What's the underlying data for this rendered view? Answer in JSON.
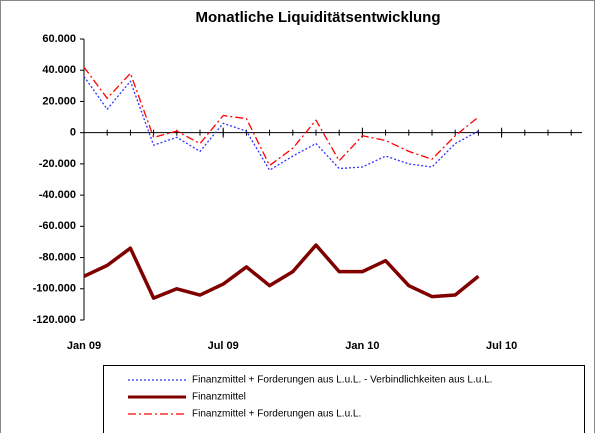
{
  "chart_data": {
    "type": "line",
    "title": "Monatliche Liquiditätsentwicklung",
    "categories": [
      "Jan 09",
      null,
      null,
      null,
      null,
      null,
      "Jul 09",
      null,
      null,
      null,
      null,
      null,
      "Jan 10",
      null,
      null,
      null,
      null,
      null,
      "Jul 10"
    ],
    "series": [
      {
        "name": "Finanzmittel + Forderungen aus L.u.L. - Verbindlichkeiten aus L.u.L.",
        "color": "#3333ff",
        "dash": "2,2",
        "width": 1.3,
        "values": [
          36000,
          15000,
          33000,
          -8000,
          -3000,
          -12000,
          6000,
          1000,
          -24000,
          -15000,
          -7000,
          -23000,
          -22000,
          -15000,
          -20000,
          -22000,
          -7000,
          1000,
          null
        ]
      },
      {
        "name": "Finanzmittel",
        "color": "#800000",
        "dash": "none",
        "width": 3.5,
        "values": [
          -92000,
          -85000,
          -74000,
          -106000,
          -100000,
          -104000,
          -97000,
          -86000,
          -98000,
          -89000,
          -72000,
          -89000,
          -89000,
          -82000,
          -98000,
          -105000,
          -104000,
          -92000,
          null
        ]
      },
      {
        "name": "Finanzmittel + Forderungen aus L.u.L.",
        "color": "#ff0000",
        "dash": "8,3,2,3",
        "width": 1.3,
        "values": [
          42000,
          22000,
          38000,
          -3000,
          1000,
          -7000,
          11000,
          9000,
          -21000,
          -10000,
          8000,
          -18000,
          -2000,
          -5000,
          -12000,
          -17000,
          -2000,
          10000,
          null
        ]
      }
    ],
    "ylim": [
      -120000,
      60000
    ],
    "yticks": [
      {
        "value": 60000,
        "label": "60.000"
      },
      {
        "value": 40000,
        "label": "40.000"
      },
      {
        "value": 20000,
        "label": "20.000"
      },
      0,
      {
        "value": -20000,
        "label": "-20.000"
      },
      {
        "value": -40000,
        "label": "-40.000"
      },
      {
        "value": -60000,
        "label": "-60.000"
      },
      {
        "value": -80000,
        "label": "-80.000"
      },
      {
        "value": -100000,
        "label": "-100.000"
      },
      {
        "value": -120000,
        "label": "-120.000"
      }
    ],
    "grid": false
  }
}
